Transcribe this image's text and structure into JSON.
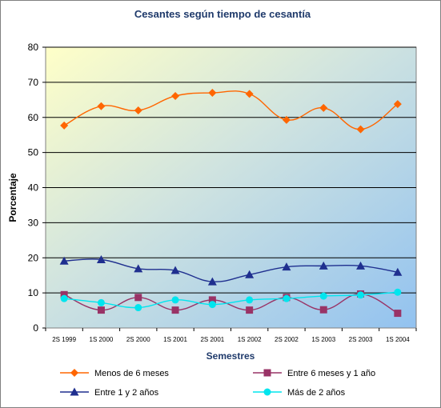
{
  "chart_data": {
    "type": "line",
    "title": "Cesantes según tiempo de cesantía",
    "xlabel": "Semestres",
    "ylabel": "Porcentaje",
    "ylim": [
      0,
      80
    ],
    "yticks": [
      "0",
      "10",
      "20",
      "30",
      "40",
      "50",
      "60",
      "70",
      "80"
    ],
    "categories": [
      "2S 1999",
      "1S 2000",
      "2S 2000",
      "1S 2001",
      "2S 2001",
      "1S 2002",
      "2S 2002",
      "1S 2003",
      "2S 2003",
      "1S 2004"
    ],
    "grid": "horizontal",
    "legend_position": "bottom",
    "series": [
      {
        "name": "Menos de 6 meses",
        "color": "#ff6600",
        "marker": "diamond",
        "values": [
          57.7,
          63.2,
          62.0,
          66.1,
          67.0,
          66.7,
          59.3,
          62.7,
          56.6,
          63.8
        ]
      },
      {
        "name": "Entre 6 meses y 1 año",
        "color": "#993366",
        "marker": "square",
        "values": [
          9.5,
          5.1,
          8.7,
          5.1,
          8.0,
          5.1,
          8.7,
          5.2,
          9.7,
          4.2
        ]
      },
      {
        "name": "Entre 1 y 2 años",
        "color": "#1f2f8f",
        "marker": "triangle",
        "values": [
          19.1,
          19.5,
          16.9,
          16.4,
          13.2,
          15.2,
          17.4,
          17.7,
          17.7,
          15.9
        ]
      },
      {
        "name": "Más de 2 años",
        "color": "#00e5ee",
        "marker": "circle",
        "values": [
          8.4,
          7.2,
          5.8,
          8.0,
          6.7,
          8.0,
          8.4,
          9.1,
          9.4,
          10.2
        ]
      }
    ]
  }
}
